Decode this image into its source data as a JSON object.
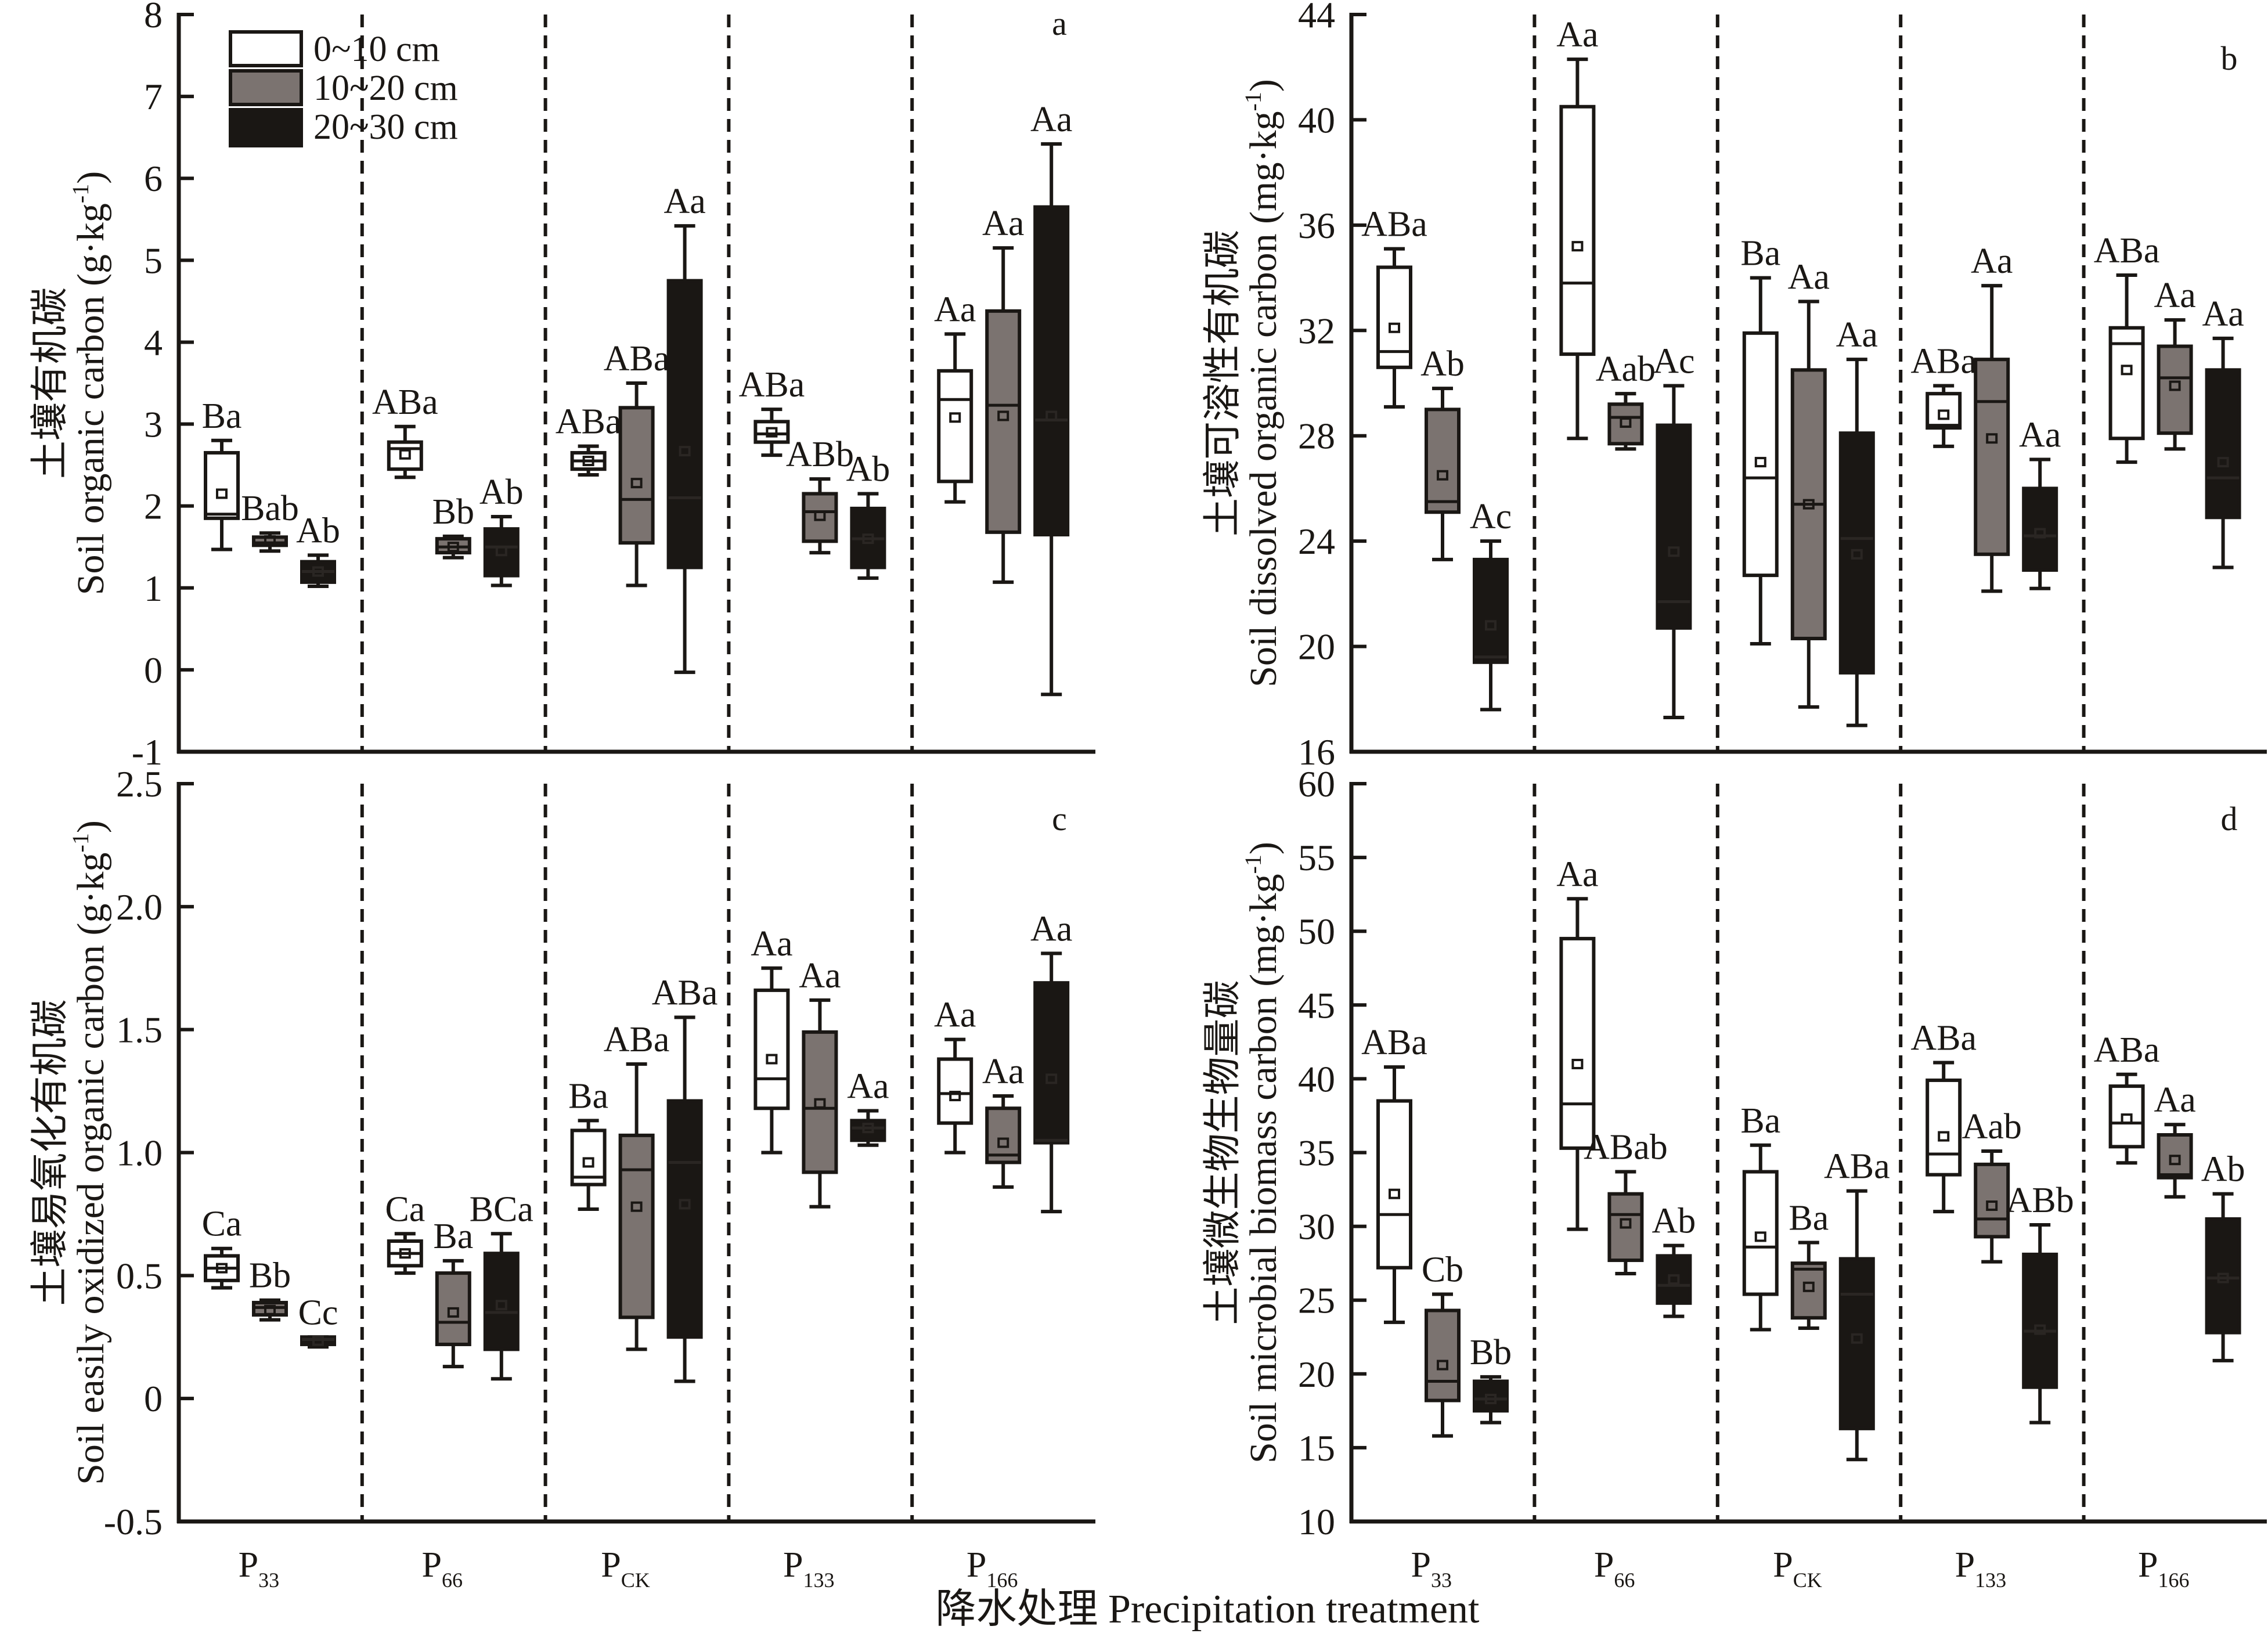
{
  "x_title": "降水处理 Precipitation treatment",
  "legend": [
    {
      "label": "0~10 cm",
      "color": "#ffffff"
    },
    {
      "label": "10~20 cm",
      "color": "#7b7370"
    },
    {
      "label": "20~30 cm",
      "color": "#1a1714"
    }
  ],
  "colors": {
    "axis": "#1a1714",
    "gray_box": "#7b7370",
    "black_box": "#1a1714",
    "white_box": "#ffffff"
  },
  "chart_data": [
    {
      "type": "box",
      "panel": "a",
      "ylabel_cn": "土壤有机碳",
      "ylabel_en": "Soil organic carbon (g·kg",
      "ylabel_sup": "-1",
      "ylabel_close": ")",
      "ylim": [
        -1,
        8
      ],
      "yticks": [
        "8",
        "7",
        "6",
        "5",
        "4",
        "3",
        "2",
        "1",
        "0",
        "-1"
      ],
      "ytick_values": [
        8,
        7,
        6,
        5,
        4,
        3,
        2,
        1,
        0,
        -1
      ],
      "categories": [
        {
          "main": "P",
          "sub": "33"
        },
        {
          "main": "P",
          "sub": "66"
        },
        {
          "main": "P",
          "sub": "CK"
        },
        {
          "main": "P",
          "sub": "133"
        },
        {
          "main": "P",
          "sub": "166"
        }
      ],
      "show_xlabels": false,
      "series": [
        {
          "name": "0~10 cm",
          "boxes": [
            {
              "whisker_high": 2.8,
              "q3": 2.65,
              "median": 1.9,
              "q1": 1.85,
              "whisker_low": 1.47,
              "mean": 2.15,
              "letters": "Ba"
            },
            {
              "whisker_high": 2.97,
              "q3": 2.78,
              "median": 2.7,
              "q1": 2.45,
              "whisker_low": 2.35,
              "mean": 2.63,
              "letters": "ABa"
            },
            {
              "whisker_high": 2.73,
              "q3": 2.65,
              "median": 2.55,
              "q1": 2.45,
              "whisker_low": 2.38,
              "mean": 2.55,
              "letters": "ABa"
            },
            {
              "whisker_high": 3.18,
              "q3": 3.03,
              "median": 2.88,
              "q1": 2.78,
              "whisker_low": 2.62,
              "mean": 2.9,
              "letters": "ABa"
            },
            {
              "whisker_high": 4.1,
              "q3": 3.65,
              "median": 3.3,
              "q1": 2.3,
              "whisker_low": 2.05,
              "mean": 3.08,
              "letters": "Aa"
            }
          ]
        },
        {
          "name": "10~20 cm",
          "boxes": [
            {
              "whisker_high": 1.67,
              "q3": 1.62,
              "median": 1.55,
              "q1": 1.52,
              "whisker_low": 1.45,
              "mean": 1.58,
              "letters": "Bab"
            },
            {
              "whisker_high": 1.63,
              "q3": 1.6,
              "median": 1.5,
              "q1": 1.43,
              "whisker_low": 1.37,
              "mean": 1.5,
              "letters": "Bb"
            },
            {
              "whisker_high": 3.5,
              "q3": 3.2,
              "median": 2.08,
              "q1": 1.55,
              "whisker_low": 1.03,
              "mean": 2.28,
              "letters": "ABa"
            },
            {
              "whisker_high": 2.33,
              "q3": 2.15,
              "median": 1.93,
              "q1": 1.57,
              "whisker_low": 1.43,
              "mean": 1.88,
              "letters": "ABb"
            },
            {
              "whisker_high": 5.15,
              "q3": 4.38,
              "median": 3.23,
              "q1": 1.68,
              "whisker_low": 1.07,
              "mean": 3.1,
              "letters": "Aa"
            }
          ]
        },
        {
          "name": "20~30 cm",
          "boxes": [
            {
              "whisker_high": 1.4,
              "q3": 1.32,
              "median": 1.2,
              "q1": 1.07,
              "whisker_low": 1.02,
              "mean": 1.2,
              "letters": "Ab"
            },
            {
              "whisker_high": 1.87,
              "q3": 1.72,
              "median": 1.5,
              "q1": 1.15,
              "whisker_low": 1.03,
              "mean": 1.45,
              "letters": "Ab"
            },
            {
              "whisker_high": 5.42,
              "q3": 4.75,
              "median": 2.1,
              "q1": 1.25,
              "whisker_low": -0.03,
              "mean": 2.67,
              "letters": "Aa"
            },
            {
              "whisker_high": 2.15,
              "q3": 1.97,
              "median": 1.6,
              "q1": 1.25,
              "whisker_low": 1.12,
              "mean": 1.6,
              "letters": "Ab"
            },
            {
              "whisker_high": 6.42,
              "q3": 5.65,
              "median": 3.05,
              "q1": 1.65,
              "whisker_low": -0.3,
              "mean": 3.1,
              "letters": "Aa"
            }
          ]
        }
      ]
    },
    {
      "type": "box",
      "panel": "b",
      "ylabel_cn": "土壤可溶性有机碳",
      "ylabel_en": "Soil dissolved organic carbon (mg·kg",
      "ylabel_sup": "-1",
      "ylabel_close": ")",
      "ylim": [
        16,
        44
      ],
      "yticks": [
        "44",
        "40",
        "36",
        "32",
        "28",
        "24",
        "20",
        "16"
      ],
      "ytick_values": [
        44,
        40,
        36,
        32,
        28,
        24,
        20,
        16
      ],
      "categories": [
        {
          "main": "P",
          "sub": "33"
        },
        {
          "main": "P",
          "sub": "66"
        },
        {
          "main": "P",
          "sub": "CK"
        },
        {
          "main": "P",
          "sub": "133"
        },
        {
          "main": "P",
          "sub": "166"
        }
      ],
      "show_xlabels": false,
      "series": [
        {
          "name": "0~10 cm",
          "boxes": [
            {
              "whisker_high": 35.1,
              "q3": 34.4,
              "median": 31.2,
              "q1": 30.6,
              "whisker_low": 29.1,
              "mean": 32.1,
              "letters": "ABa"
            },
            {
              "whisker_high": 42.3,
              "q3": 40.5,
              "median": 33.8,
              "q1": 31.1,
              "whisker_low": 27.9,
              "mean": 35.2,
              "letters": "Aa"
            },
            {
              "whisker_high": 34.0,
              "q3": 31.9,
              "median": 26.4,
              "q1": 22.7,
              "whisker_low": 20.1,
              "mean": 27.0,
              "letters": "Ba"
            },
            {
              "whisker_high": 29.9,
              "q3": 29.6,
              "median": 28.4,
              "q1": 28.3,
              "whisker_low": 27.6,
              "mean": 28.8,
              "letters": "ABa"
            },
            {
              "whisker_high": 34.1,
              "q3": 32.1,
              "median": 31.5,
              "q1": 27.9,
              "whisker_low": 27.0,
              "mean": 30.5,
              "letters": "ABa"
            }
          ]
        },
        {
          "name": "10~20 cm",
          "boxes": [
            {
              "whisker_high": 29.8,
              "q3": 29.0,
              "median": 25.5,
              "q1": 25.1,
              "whisker_low": 23.3,
              "mean": 26.5,
              "letters": "Ab"
            },
            {
              "whisker_high": 29.6,
              "q3": 29.2,
              "median": 28.7,
              "q1": 27.7,
              "whisker_low": 27.5,
              "mean": 28.5,
              "letters": "Aab"
            },
            {
              "whisker_high": 33.1,
              "q3": 30.5,
              "median": 25.4,
              "q1": 20.3,
              "whisker_low": 17.7,
              "mean": 25.4,
              "letters": "Aa"
            },
            {
              "whisker_high": 33.7,
              "q3": 30.9,
              "median": 29.3,
              "q1": 23.5,
              "whisker_low": 22.1,
              "mean": 27.9,
              "letters": "Aa"
            },
            {
              "whisker_high": 32.4,
              "q3": 31.4,
              "median": 30.2,
              "q1": 28.1,
              "whisker_low": 27.5,
              "mean": 29.9,
              "letters": "Aa"
            }
          ]
        },
        {
          "name": "20~30 cm",
          "boxes": [
            {
              "whisker_high": 24.0,
              "q3": 23.3,
              "median": 19.6,
              "q1": 19.4,
              "whisker_low": 17.6,
              "mean": 20.8,
              "letters": "Ac"
            },
            {
              "whisker_high": 29.9,
              "q3": 28.4,
              "median": 21.7,
              "q1": 20.7,
              "whisker_low": 17.3,
              "mean": 23.6,
              "letters": "Ac"
            },
            {
              "whisker_high": 30.9,
              "q3": 28.1,
              "median": 24.1,
              "q1": 19.0,
              "whisker_low": 17.0,
              "mean": 23.5,
              "letters": "Aa"
            },
            {
              "whisker_high": 27.1,
              "q3": 26.0,
              "median": 24.2,
              "q1": 22.9,
              "whisker_low": 22.2,
              "mean": 24.3,
              "letters": "Aa"
            },
            {
              "whisker_high": 31.7,
              "q3": 30.5,
              "median": 26.4,
              "q1": 24.9,
              "whisker_low": 23.0,
              "mean": 27.0,
              "letters": "Aa"
            }
          ]
        }
      ]
    },
    {
      "type": "box",
      "panel": "c",
      "ylabel_cn": "土壤易氧化有机碳",
      "ylabel_en": "Soil easily oxidized organic carbon (g·kg",
      "ylabel_sup": "-1",
      "ylabel_close": ")",
      "ylim": [
        -0.5,
        2.5
      ],
      "yticks": [
        "2.5",
        "2.0",
        "1.5",
        "1.0",
        "0.5",
        "0",
        "-0.5"
      ],
      "ytick_values": [
        2.5,
        2.0,
        1.5,
        1.0,
        0.5,
        0,
        -0.5
      ],
      "categories": [
        {
          "main": "P",
          "sub": "33"
        },
        {
          "main": "P",
          "sub": "66"
        },
        {
          "main": "P",
          "sub": "CK"
        },
        {
          "main": "P",
          "sub": "133"
        },
        {
          "main": "P",
          "sub": "166"
        }
      ],
      "show_xlabels": true,
      "series": [
        {
          "name": "0~10 cm",
          "boxes": [
            {
              "whisker_high": 0.61,
              "q3": 0.58,
              "median": 0.53,
              "q1": 0.48,
              "whisker_low": 0.45,
              "mean": 0.53,
              "letters": "Ca"
            },
            {
              "whisker_high": 0.67,
              "q3": 0.64,
              "median": 0.59,
              "q1": 0.54,
              "whisker_low": 0.51,
              "mean": 0.59,
              "letters": "Ca"
            },
            {
              "whisker_high": 1.13,
              "q3": 1.09,
              "median": 0.9,
              "q1": 0.87,
              "whisker_low": 0.77,
              "mean": 0.96,
              "letters": "Ba"
            },
            {
              "whisker_high": 1.75,
              "q3": 1.66,
              "median": 1.3,
              "q1": 1.18,
              "whisker_low": 1.0,
              "mean": 1.38,
              "letters": "Aa"
            },
            {
              "whisker_high": 1.46,
              "q3": 1.38,
              "median": 1.24,
              "q1": 1.12,
              "whisker_low": 1.0,
              "mean": 1.23,
              "letters": "Aa"
            }
          ]
        },
        {
          "name": "10~20 cm",
          "boxes": [
            {
              "whisker_high": 0.4,
              "q3": 0.39,
              "median": 0.37,
              "q1": 0.34,
              "whisker_low": 0.32,
              "mean": 0.36,
              "letters": "Bb"
            },
            {
              "whisker_high": 0.56,
              "q3": 0.51,
              "median": 0.31,
              "q1": 0.22,
              "whisker_low": 0.13,
              "mean": 0.35,
              "letters": "Ba"
            },
            {
              "whisker_high": 1.36,
              "q3": 1.07,
              "median": 0.93,
              "q1": 0.33,
              "whisker_low": 0.2,
              "mean": 0.78,
              "letters": "ABa"
            },
            {
              "whisker_high": 1.62,
              "q3": 1.49,
              "median": 1.18,
              "q1": 0.92,
              "whisker_low": 0.78,
              "mean": 1.2,
              "letters": "Aa"
            },
            {
              "whisker_high": 1.23,
              "q3": 1.18,
              "median": 0.99,
              "q1": 0.96,
              "whisker_low": 0.86,
              "mean": 1.04,
              "letters": "Aa"
            }
          ]
        },
        {
          "name": "20~30 cm",
          "boxes": [
            {
              "whisker_high": 0.25,
              "q3": 0.25,
              "median": 0.24,
              "q1": 0.22,
              "whisker_low": 0.21,
              "mean": 0.235,
              "letters": "Cc"
            },
            {
              "whisker_high": 0.67,
              "q3": 0.59,
              "median": 0.35,
              "q1": 0.2,
              "whisker_low": 0.08,
              "mean": 0.38,
              "letters": "BCa"
            },
            {
              "whisker_high": 1.55,
              "q3": 1.21,
              "median": 0.96,
              "q1": 0.25,
              "whisker_low": 0.07,
              "mean": 0.79,
              "letters": "ABa"
            },
            {
              "whisker_high": 1.17,
              "q3": 1.13,
              "median": 1.1,
              "q1": 1.05,
              "whisker_low": 1.03,
              "mean": 1.1,
              "letters": "Aa"
            },
            {
              "whisker_high": 1.81,
              "q3": 1.69,
              "median": 1.05,
              "q1": 1.04,
              "whisker_low": 0.76,
              "mean": 1.3,
              "letters": "Aa"
            }
          ]
        }
      ]
    },
    {
      "type": "box",
      "panel": "d",
      "ylabel_cn": "土壤微生物生物量碳",
      "ylabel_en": "Soil microbial biomass carbon (mg·kg",
      "ylabel_sup": "-1",
      "ylabel_close": ")",
      "ylim": [
        10,
        60
      ],
      "yticks": [
        "60",
        "55",
        "50",
        "45",
        "40",
        "35",
        "30",
        "25",
        "20",
        "15",
        "10"
      ],
      "ytick_values": [
        60,
        55,
        50,
        45,
        40,
        35,
        30,
        25,
        20,
        15,
        10
      ],
      "categories": [
        {
          "main": "P",
          "sub": "33"
        },
        {
          "main": "P",
          "sub": "66"
        },
        {
          "main": "P",
          "sub": "CK"
        },
        {
          "main": "P",
          "sub": "133"
        },
        {
          "main": "P",
          "sub": "166"
        }
      ],
      "show_xlabels": true,
      "series": [
        {
          "name": "0~10 cm",
          "boxes": [
            {
              "whisker_high": 40.8,
              "q3": 38.5,
              "median": 30.8,
              "q1": 27.2,
              "whisker_low": 23.5,
              "mean": 32.2,
              "letters": "ABa"
            },
            {
              "whisker_high": 52.2,
              "q3": 49.5,
              "median": 38.3,
              "q1": 35.3,
              "whisker_low": 29.8,
              "mean": 41.0,
              "letters": "Aa"
            },
            {
              "whisker_high": 35.5,
              "q3": 33.7,
              "median": 28.6,
              "q1": 25.4,
              "whisker_low": 23.0,
              "mean": 29.3,
              "letters": "Ba"
            },
            {
              "whisker_high": 41.1,
              "q3": 39.9,
              "median": 34.9,
              "q1": 33.5,
              "whisker_low": 31.0,
              "mean": 36.1,
              "letters": "ABa"
            },
            {
              "whisker_high": 40.3,
              "q3": 39.5,
              "median": 37.0,
              "q1": 35.4,
              "whisker_low": 34.3,
              "mean": 37.3,
              "letters": "ABa"
            }
          ]
        },
        {
          "name": "10~20 cm",
          "boxes": [
            {
              "whisker_high": 25.4,
              "q3": 24.3,
              "median": 19.5,
              "q1": 18.2,
              "whisker_low": 15.8,
              "mean": 20.6,
              "letters": "Cb"
            },
            {
              "whisker_high": 33.7,
              "q3": 32.2,
              "median": 30.8,
              "q1": 27.7,
              "whisker_low": 26.8,
              "mean": 30.2,
              "letters": "ABab"
            },
            {
              "whisker_high": 28.9,
              "q3": 27.5,
              "median": 27.1,
              "q1": 23.8,
              "whisker_low": 23.1,
              "mean": 25.9,
              "letters": "Ba"
            },
            {
              "whisker_high": 35.1,
              "q3": 34.2,
              "median": 30.5,
              "q1": 29.3,
              "whisker_low": 27.6,
              "mean": 31.4,
              "letters": "Aab"
            },
            {
              "whisker_high": 36.9,
              "q3": 36.2,
              "median": 33.5,
              "q1": 33.3,
              "whisker_low": 32.0,
              "mean": 34.5,
              "letters": "Aa"
            }
          ]
        },
        {
          "name": "20~30 cm",
          "boxes": [
            {
              "whisker_high": 19.8,
              "q3": 19.5,
              "median": 18.3,
              "q1": 17.5,
              "whisker_low": 16.7,
              "mean": 18.3,
              "letters": "Bb"
            },
            {
              "whisker_high": 28.7,
              "q3": 28.0,
              "median": 26.0,
              "q1": 24.8,
              "whisker_low": 23.9,
              "mean": 26.4,
              "letters": "Ab"
            },
            {
              "whisker_high": 32.4,
              "q3": 27.8,
              "median": 25.4,
              "q1": 16.3,
              "whisker_low": 14.2,
              "mean": 22.4,
              "letters": "ABa"
            },
            {
              "whisker_high": 30.1,
              "q3": 28.1,
              "median": 22.9,
              "q1": 19.1,
              "whisker_low": 16.7,
              "mean": 23.0,
              "letters": "ABb"
            },
            {
              "whisker_high": 32.2,
              "q3": 30.5,
              "median": 26.5,
              "q1": 22.8,
              "whisker_low": 20.9,
              "mean": 26.5,
              "letters": "Ab"
            }
          ]
        }
      ]
    }
  ]
}
